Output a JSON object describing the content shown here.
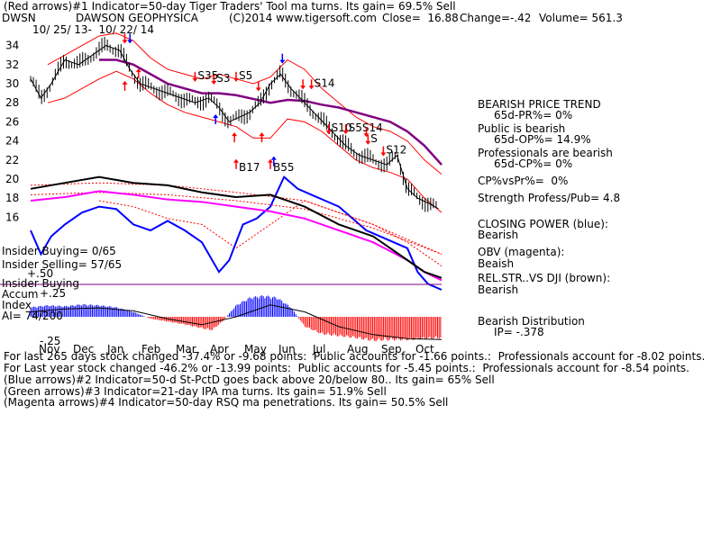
{
  "header": {
    "line1": "(Red arrows)#1 Indicator=50-day Tiger Traders' Tool ma turns. Its gain= 69.5% Sell",
    "ticker": "DWSN",
    "company": "DAWSON GEOPHYSICA",
    "copyright": "(C)2014 www.tigersoft.com",
    "close": "Close=  16.88",
    "change": "Change=-.42",
    "volume": "Volume= 561.3",
    "date_range": "10/ 25/ 13-  10/ 22/ 14"
  },
  "side_panel": {
    "trend_title": "BEARISH PRICE TREND",
    "pr_line": "65d-PR%= 0%",
    "public_title": "Public is bearish",
    "op_line": "65d-OP%= 14.9%",
    "pro_title": "Professionals are bearish",
    "cp_line": "65d-CP%= 0%",
    "cpvspr": "CP%vsPr%=  0%",
    "strength": "Strength Profess/Pub= 4.8",
    "closing_power_title": "CLOSING POWER (blue):",
    "closing_power_value": "Bearish",
    "obv_title": "OBV (magenta):",
    "obv_value": "Beaish",
    "relstr_title": "REL.STR..VS DJI (brown):",
    "relstr_value": "Bearish",
    "distribution_title": "Bearish Distribution",
    "ip_line": "IP= -.378"
  },
  "left_labels": {
    "insider_buying": "Insider Buying= 0/65",
    "insider_selling": "Insider Selling= 57/65",
    "plus50": "+.50",
    "insider_buying2": "Insider Buying",
    "accum": "Accum",
    "plus25": "+.25",
    "index": "Index",
    "ai": "AI= 74/200",
    "minus25": "-.25"
  },
  "footer": {
    "line1": "For last 265 days stock changed -37.4% or -9.68 points:  Public accounts for -1.66 points.:  Professionals account for -8.02 points.",
    "line2": "For Last year stock changed -46.2% or -13.99 points:  Public accounts for -5.45 points.:  Professionals account for -8.54 points.",
    "line3": "(Blue arrows)#2 Indicator=50-d St-PctD goes back above 20/below 80.. Its gain= 65% Sell",
    "line4": "(Green arrows)#3 Indicator=21-day IPA ma turns. Its gain= 51.9% Sell",
    "line5": "(Magenta arrows)#4 Indicator=50-day RSQ ma penetrations. Its gain= 50.5% Sell"
  },
  "colors": {
    "price": "#000000",
    "band": "#ff0000",
    "ma": "#800080",
    "closing_power": "#0000ff",
    "ma_dotted": "#ff0000",
    "obv": "#ff00ff",
    "relstr": "#000000",
    "accum_pos": "#0000ff",
    "accum_neg": "#ff0000",
    "hline": "#800080",
    "arrow_red": "#ff0000",
    "arrow_blue": "#0000ff"
  },
  "chart_data": {
    "type": "line",
    "ylim": [
      15,
      35
    ],
    "y_ticks": [
      34,
      32,
      30,
      28,
      26,
      24,
      22,
      20,
      18,
      16
    ],
    "month_labels": [
      "Nov",
      "Dec",
      "Jan",
      "Feb",
      "Mar",
      "Apr",
      "May",
      "Jun",
      "Jul",
      "Aug",
      "Sep",
      "Oct"
    ],
    "month_pos": [
      0.5,
      1.5,
      2.5,
      3.5,
      4.5,
      5.5,
      6.5,
      7.5,
      8.5,
      9.5,
      10.5,
      11.5
    ],
    "x_max": 12,
    "series": [
      {
        "name": "Price",
        "x": [
          0.0,
          0.3,
          0.6,
          1.0,
          1.4,
          1.8,
          2.2,
          2.6,
          2.9,
          3.2,
          3.6,
          4.0,
          4.4,
          4.8,
          5.2,
          5.5,
          5.8,
          6.1,
          6.4,
          6.7,
          7.0,
          7.3,
          7.6,
          8.0,
          8.4,
          8.8,
          9.2,
          9.6,
          10.0,
          10.4,
          10.7,
          11.0,
          11.3,
          11.6,
          11.9
        ],
        "y": [
          30.5,
          28.5,
          30,
          32.5,
          32,
          33,
          34,
          33.5,
          31.5,
          30,
          29.5,
          29,
          28.5,
          28,
          28.5,
          27.5,
          26,
          26.5,
          27,
          28,
          30,
          31,
          29.5,
          28,
          26.5,
          25,
          23.5,
          22.5,
          22,
          21.5,
          22.5,
          19,
          18,
          17.5,
          16.9
        ]
      },
      {
        "name": "Upper band",
        "x": [
          0.5,
          1.0,
          1.5,
          2.0,
          2.5,
          3.0,
          3.5,
          4.0,
          4.5,
          5.0,
          5.5,
          6.0,
          6.5,
          7.0,
          7.5,
          8.0,
          8.5,
          9.0,
          9.5,
          10.0,
          10.5,
          11.0,
          11.5,
          12.0
        ],
        "y": [
          32,
          33,
          34,
          35,
          35.3,
          34.5,
          32.7,
          31.5,
          31,
          30.5,
          31,
          30.5,
          30,
          30.7,
          32.5,
          31.5,
          29.5,
          28,
          26.5,
          25.5,
          25,
          24,
          22,
          20.5
        ]
      },
      {
        "name": "Lower band",
        "x": [
          0.5,
          1.0,
          1.5,
          2.0,
          2.5,
          3.0,
          3.5,
          4.0,
          4.5,
          5.0,
          5.5,
          6.0,
          6.5,
          7.0,
          7.5,
          8.0,
          8.5,
          9.0,
          9.5,
          10.0,
          10.5,
          11.0,
          11.5,
          12.0
        ],
        "y": [
          28,
          28.5,
          29.5,
          30.5,
          31.3,
          30.5,
          29,
          27.8,
          27,
          26.5,
          26,
          25.5,
          24.3,
          24.3,
          26.3,
          26,
          25,
          23.5,
          22,
          21.2,
          20.7,
          20,
          18,
          16.5
        ]
      },
      {
        "name": "Moving average",
        "x": [
          2.0,
          2.5,
          3.0,
          3.5,
          4.0,
          4.5,
          5.0,
          5.5,
          6.0,
          6.5,
          7.0,
          7.5,
          8.0,
          8.5,
          9.0,
          9.5,
          10.0,
          10.5,
          11.0,
          11.5,
          12.0
        ],
        "y": [
          32.5,
          32.5,
          32,
          31,
          30,
          29.5,
          29,
          29,
          28.8,
          28.4,
          28,
          28.3,
          28.2,
          27.8,
          27.5,
          27,
          26.5,
          26,
          25,
          23.5,
          21.5
        ]
      }
    ],
    "closing_power": {
      "x": [
        0,
        0.3,
        0.6,
        1,
        1.5,
        2,
        2.5,
        3,
        3.5,
        4,
        4.5,
        5,
        5.5,
        5.8,
        6.2,
        6.6,
        7,
        7.4,
        7.8,
        8.2,
        8.6,
        9,
        9.4,
        9.8,
        10.2,
        10.6,
        11,
        11.3,
        11.6,
        12
      ],
      "y": [
        0.5,
        0.3,
        0.45,
        0.55,
        0.65,
        0.7,
        0.68,
        0.55,
        0.5,
        0.58,
        0.5,
        0.4,
        0.15,
        0.25,
        0.55,
        0.6,
        0.7,
        0.95,
        0.85,
        0.8,
        0.75,
        0.7,
        0.6,
        0.5,
        0.45,
        0.4,
        0.35,
        0.15,
        0.05,
        0
      ]
    },
    "cp_ma": {
      "x": [
        2,
        3,
        4,
        5,
        6,
        7,
        8,
        9,
        10,
        11,
        12
      ],
      "y": [
        0.75,
        0.7,
        0.6,
        0.55,
        0.35,
        0.55,
        0.75,
        0.65,
        0.55,
        0.4,
        0.2
      ]
    },
    "obv": {
      "x": [
        0,
        1,
        2,
        3,
        4,
        5,
        6,
        7,
        8,
        9,
        10,
        11,
        11.5,
        12
      ],
      "y": [
        0.75,
        0.78,
        0.83,
        0.8,
        0.76,
        0.74,
        0.7,
        0.66,
        0.6,
        0.5,
        0.4,
        0.25,
        0.15,
        0.08
      ]
    },
    "obv_ma": {
      "x": [
        0,
        2,
        4,
        6,
        8,
        10,
        12
      ],
      "y": [
        0.8,
        0.82,
        0.8,
        0.75,
        0.68,
        0.52,
        0.3
      ]
    },
    "relstr": {
      "x": [
        0,
        1,
        2,
        3,
        4,
        5,
        6,
        7,
        8,
        9,
        10,
        11,
        11.5,
        12
      ],
      "y": [
        0.85,
        0.9,
        0.95,
        0.9,
        0.88,
        0.82,
        0.78,
        0.8,
        0.7,
        0.55,
        0.45,
        0.25,
        0.15,
        0.1
      ]
    },
    "relstr_ma": {
      "x": [
        0,
        2,
        4,
        6,
        8,
        10,
        12
      ],
      "y": [
        0.88,
        0.9,
        0.88,
        0.82,
        0.75,
        0.55,
        0.3
      ]
    },
    "accum": {
      "x": [
        0,
        0.5,
        1,
        1.5,
        2,
        2.5,
        3,
        3.5,
        4,
        4.5,
        5,
        5.3,
        5.6,
        6,
        6.4,
        6.8,
        7.2,
        7.6,
        8,
        8.5,
        9,
        9.5,
        10,
        10.5,
        11,
        11.5,
        12
      ],
      "y": [
        0.1,
        0.12,
        0.11,
        0.13,
        0.12,
        0.1,
        0.05,
        -0.02,
        -0.05,
        -0.08,
        -0.12,
        -0.14,
        -0.05,
        0.12,
        0.2,
        0.22,
        0.2,
        0.1,
        -0.1,
        -0.18,
        -0.2,
        -0.22,
        -0.25,
        -0.24,
        -0.24,
        -0.23,
        -0.22
      ]
    },
    "accum_ma": {
      "x": [
        0,
        1,
        2,
        3,
        4,
        5,
        6,
        7,
        8,
        9,
        10,
        11,
        12
      ],
      "y": [
        0.05,
        0.08,
        0.09,
        0.06,
        -0.02,
        -0.08,
        0.0,
        0.12,
        0.05,
        -0.1,
        -0.18,
        -0.22,
        -0.23
      ]
    },
    "signals": [
      {
        "label": "",
        "x": 2.75,
        "y": 34.3,
        "dir": "down",
        "color": "red"
      },
      {
        "label": "",
        "x": 2.9,
        "y": 34.3,
        "dir": "down",
        "color": "blue"
      },
      {
        "label": "",
        "x": 2.75,
        "y": 30.2,
        "dir": "up",
        "color": "red"
      },
      {
        "label": "",
        "x": 3.15,
        "y": 31.5,
        "dir": "up",
        "color": "red"
      },
      {
        "label": "S35",
        "x": 4.8,
        "y": 30.3,
        "dir": "down",
        "color": "red"
      },
      {
        "label": "S3",
        "x": 5.35,
        "y": 30,
        "dir": "down",
        "color": "red"
      },
      {
        "label": "S5",
        "x": 6.0,
        "y": 30.3,
        "dir": "down",
        "color": "red"
      },
      {
        "label": "",
        "x": 6.65,
        "y": 29.3,
        "dir": "down",
        "color": "red"
      },
      {
        "label": "",
        "x": 5.4,
        "y": 26.7,
        "dir": "up",
        "color": "blue"
      },
      {
        "label": "",
        "x": 5.95,
        "y": 24.8,
        "dir": "up",
        "color": "red"
      },
      {
        "label": "",
        "x": 6.75,
        "y": 24.8,
        "dir": "up",
        "color": "red"
      },
      {
        "label": "B17",
        "x": 6.0,
        "y": 22,
        "dir": "up",
        "color": "red"
      },
      {
        "label": "B55",
        "x": 7.0,
        "y": 22,
        "dir": "up",
        "color": "red"
      },
      {
        "label": "",
        "x": 7.1,
        "y": 22.3,
        "dir": "up",
        "color": "blue"
      },
      {
        "label": "",
        "x": 7.35,
        "y": 32.2,
        "dir": "down",
        "color": "blue"
      },
      {
        "label": "",
        "x": 7.95,
        "y": 29.5,
        "dir": "down",
        "color": "red"
      },
      {
        "label": "S14",
        "x": 8.2,
        "y": 29.5,
        "dir": "down",
        "color": "red"
      },
      {
        "label": "S10",
        "x": 8.7,
        "y": 24.8,
        "dir": "down",
        "color": "red"
      },
      {
        "label": "S5S14",
        "x": 9.2,
        "y": 24.8,
        "dir": "down",
        "color": "red"
      },
      {
        "label": "",
        "x": 9.8,
        "y": 24.5,
        "dir": "down",
        "color": "red"
      },
      {
        "label": "S",
        "x": 9.85,
        "y": 23.7,
        "dir": "down",
        "color": "red"
      },
      {
        "label": "S12",
        "x": 10.3,
        "y": 22.5,
        "dir": "down",
        "color": "red"
      }
    ]
  }
}
